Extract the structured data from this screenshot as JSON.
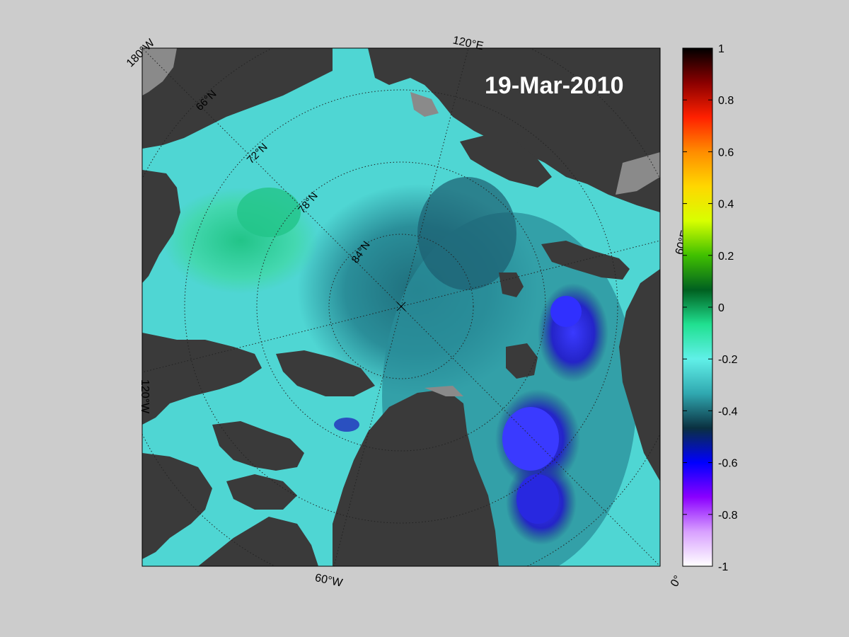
{
  "map": {
    "date": "19-Mar-2010",
    "lon_labels": {
      "w180": "180°W",
      "e120": "120°E",
      "e60": "60°E",
      "w120": "120°W",
      "w60": "60°W",
      "zero": "0°"
    },
    "lat_labels": [
      "66°N",
      "72°N",
      "78°N",
      "84°N"
    ],
    "colors": {
      "land": "#3a3a3a",
      "land_mask": "#8a8a8a",
      "ocean_base": "#4fd6d3"
    }
  },
  "colorbar": {
    "ticks": [
      "1",
      "0.8",
      "0.6",
      "0.4",
      "0.2",
      "0",
      "-0.2",
      "-0.4",
      "-0.6",
      "-0.8",
      "-1"
    ],
    "range": [
      -1,
      1
    ],
    "colors_top_to_bottom": [
      "#000000",
      "#8a0000",
      "#ff2000",
      "#ff8c00",
      "#ffd700",
      "#d8ff00",
      "#40c000",
      "#006020",
      "#20e090",
      "#60f0e8",
      "#30a8b0",
      "#0a3040",
      "#0000ff",
      "#8a00ff",
      "#d8a0ff",
      "#ffffff"
    ]
  }
}
